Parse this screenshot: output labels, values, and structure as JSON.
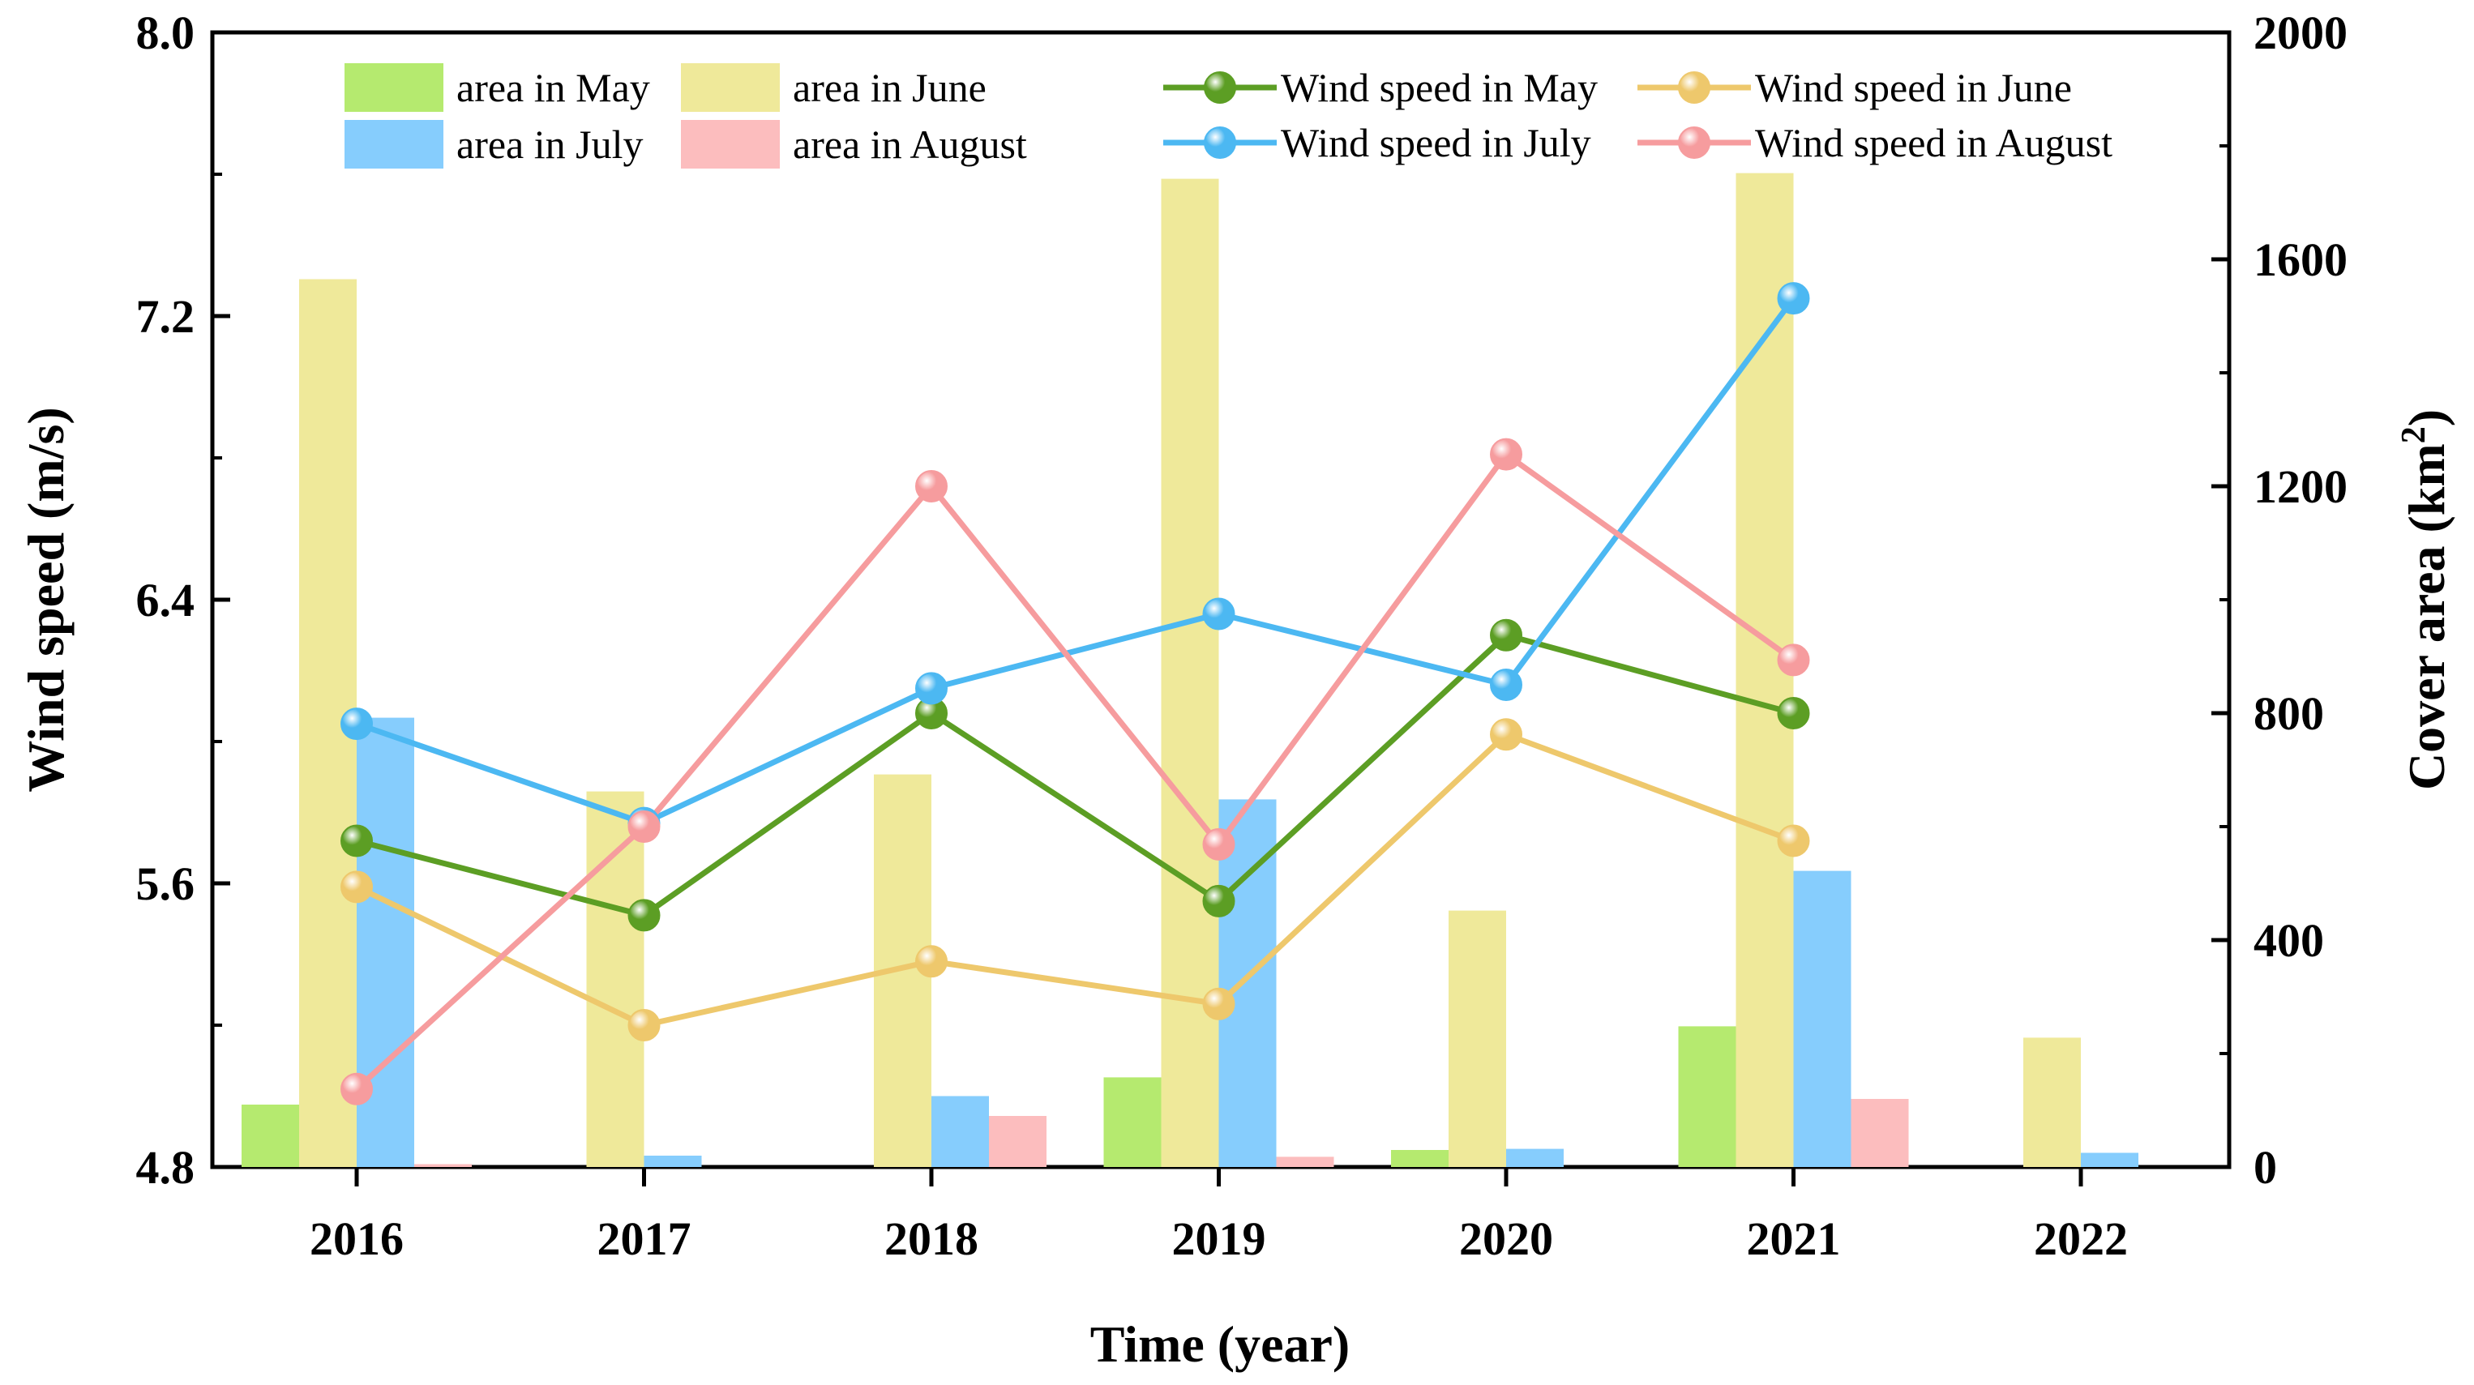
{
  "chart_data": {
    "type": "bar+line",
    "xlabel": "Time (year)",
    "ylabel_left": "Wind speed (m/s)",
    "ylabel_right_prefix": "Cover area (km",
    "ylabel_right_sup": "2",
    "ylabel_right_suffix": ")",
    "categories": [
      "2016",
      "2017",
      "2018",
      "2019",
      "2020",
      "2021",
      "2022"
    ],
    "y_left": {
      "min": 4.8,
      "max": 8.0,
      "ticks": [
        "4.8",
        "5.6",
        "6.4",
        "7.2",
        "8.0"
      ]
    },
    "y_right": {
      "min": 0,
      "max": 2000,
      "ticks": [
        "0",
        "400",
        "800",
        "1200",
        "1600",
        "2000"
      ]
    },
    "bar_series": [
      {
        "name": "area in May",
        "color": "#b5ea6f",
        "values": [
          110,
          0,
          0,
          158,
          30,
          248,
          0
        ]
      },
      {
        "name": "area in June",
        "color": "#efe99a",
        "values": [
          1565,
          662,
          692,
          1742,
          452,
          1752,
          228
        ]
      },
      {
        "name": "area in July",
        "color": "#86cdfd",
        "values": [
          792,
          20,
          125,
          648,
          32,
          522,
          25
        ]
      },
      {
        "name": "area in August",
        "color": "#fcbdbe",
        "values": [
          5,
          0,
          90,
          18,
          0,
          120,
          0
        ]
      }
    ],
    "line_series": [
      {
        "name": "Wind speed in May",
        "color": "#5c9e24",
        "values": [
          5.72,
          5.51,
          6.08,
          5.55,
          6.3,
          6.08,
          null
        ]
      },
      {
        "name": "Wind speed in June",
        "color": "#eec86c",
        "values": [
          5.59,
          5.2,
          5.38,
          5.26,
          6.02,
          5.72,
          null
        ]
      },
      {
        "name": "Wind speed in July",
        "color": "#4cb8f2",
        "values": [
          6.05,
          5.77,
          6.15,
          6.36,
          6.16,
          7.25,
          null
        ]
      },
      {
        "name": "Wind speed in August",
        "color": "#f69c9e",
        "values": [
          5.02,
          5.76,
          6.72,
          5.71,
          6.81,
          6.23,
          null
        ]
      }
    ]
  }
}
